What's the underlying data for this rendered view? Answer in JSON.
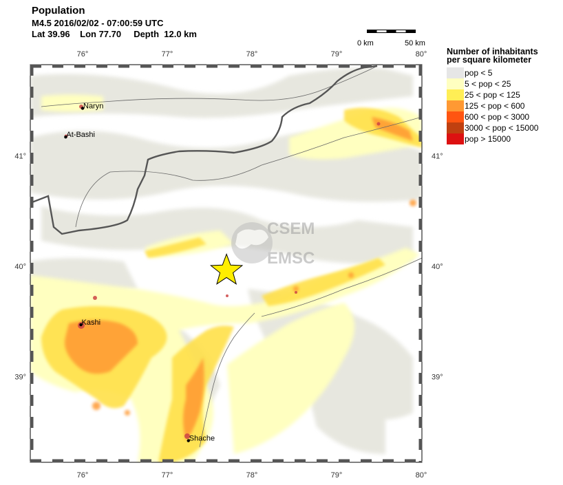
{
  "header": {
    "title": "Population",
    "line1": "M4.5  2016/02/02 - 07:00:59 UTC",
    "lat_label": "Lat",
    "lat": "39.96",
    "lon_label": "Lon",
    "lon": "77.70",
    "depth_label": "Depth",
    "depth": "12.0 km"
  },
  "scale_bar": {
    "left_label": "0 km",
    "right_label": "50 km"
  },
  "axes": {
    "lon_ticks": [
      "76°",
      "77°",
      "78°",
      "79°",
      "80°"
    ],
    "lat_ticks": [
      "41°",
      "40°",
      "39°"
    ]
  },
  "cities": [
    {
      "name": "Naryn",
      "lon": 76.0,
      "lat": 41.43
    },
    {
      "name": "At-Bashi",
      "lon": 75.8,
      "lat": 41.17
    },
    {
      "name": "Kashi",
      "lon": 75.98,
      "lat": 39.47
    },
    {
      "name": "Shache",
      "lon": 77.25,
      "lat": 38.42
    }
  ],
  "epicenter": {
    "lon": 77.7,
    "lat": 39.96,
    "marker": "star-icon",
    "color": "#ffee00"
  },
  "watermark": {
    "line1": "CSEM",
    "line2": "EMSC"
  },
  "legend": {
    "title_line1": "Number of inhabitants",
    "title_line2": "per square kilometer",
    "items": [
      {
        "label": "pop < 5",
        "color": "#e6e6e6"
      },
      {
        "label": "5 < pop < 25",
        "color": "#ffffc0"
      },
      {
        "label": "25 < pop < 125",
        "color": "#ffee55"
      },
      {
        "label": "125 < pop < 600",
        "color": "#ff9933"
      },
      {
        "label": "600 < pop < 3000",
        "color": "#ff5511"
      },
      {
        "label": "3000 < pop < 15000",
        "color": "#c04010"
      },
      {
        "label": "pop > 15000",
        "color": "#dd1111"
      }
    ]
  }
}
